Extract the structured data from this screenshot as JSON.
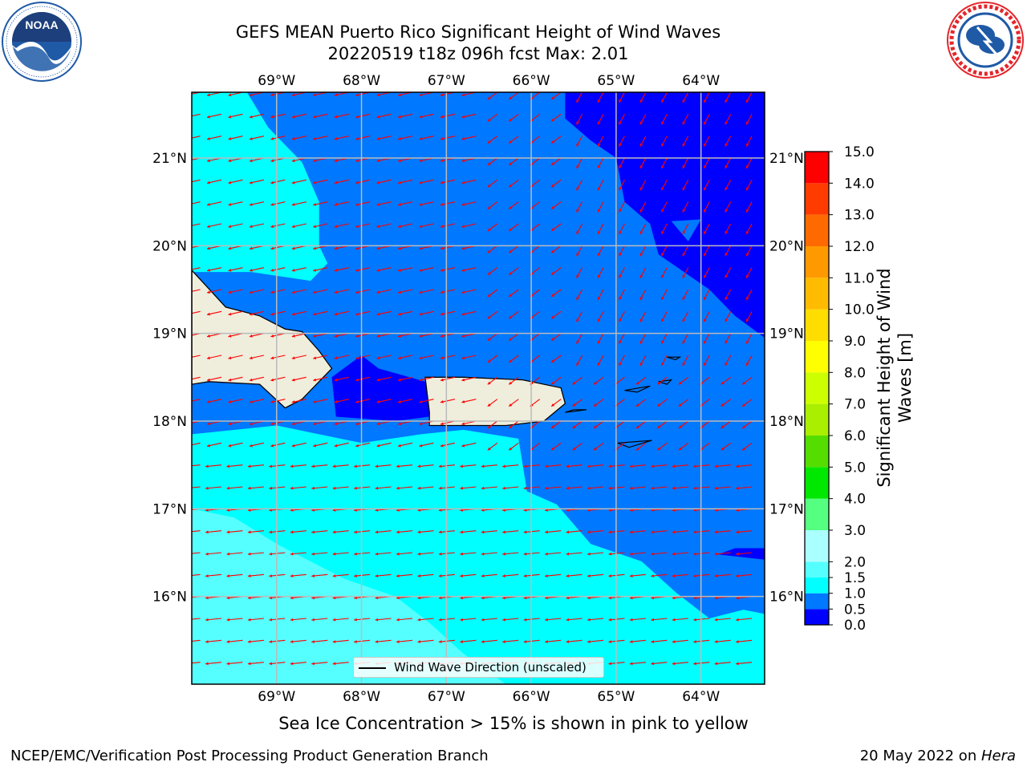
{
  "title": {
    "line1": "GEFS MEAN Puerto Rico Significant Height of Wind Waves",
    "line2": "20220519 t18z 096h fcst   Max: 2.01"
  },
  "logos": {
    "left": {
      "text": "NOAA",
      "ring_text": "NATIONAL OCEANIC AND ATMOSPHERIC ADMINISTRATION · U.S. DEPARTMENT OF COMMERCE",
      "color": "#1f5aa6"
    },
    "right": {
      "ring_text": "NATIONAL WEATHER SERVICE",
      "color": "#e4262b"
    }
  },
  "map": {
    "lon_range": [
      -70,
      -63.25
    ],
    "lat_range": [
      15,
      21.75
    ],
    "lon_ticks": [
      "69°W",
      "68°W",
      "67°W",
      "66°W",
      "65°W",
      "64°W"
    ],
    "lat_ticks": [
      "21°N",
      "20°N",
      "19°N",
      "18°N",
      "17°N",
      "16°N"
    ],
    "grid": true,
    "land_color": "#efeddc",
    "arrow_color": "#ff0000",
    "legend": "Wind Wave Direction (unscaled)",
    "legend_placement": "lower-center"
  },
  "colorbar": {
    "label": "Significant Height of Wind Waves [m]",
    "label_line1": "Significant Height of Wind",
    "label_line2": "Waves [m]",
    "ticks": [
      "0.0",
      "0.5",
      "1.0",
      "1.5",
      "2.0",
      "3.0",
      "4.0",
      "5.0",
      "6.0",
      "7.0",
      "8.0",
      "9.0",
      "10.0",
      "11.0",
      "12.0",
      "13.0",
      "14.0",
      "15.0"
    ],
    "colors": [
      "#0000ff",
      "#0078ff",
      "#00ffff",
      "#55ffff",
      "#aaffff",
      "#55ff7f",
      "#00e800",
      "#55dd00",
      "#aaee00",
      "#ccff00",
      "#ffff00",
      "#ffdd00",
      "#ffbb00",
      "#ff9900",
      "#ff6a00",
      "#ff3b00",
      "#ff0000"
    ]
  },
  "ice_note": "Sea Ice Concentration > 15% is shown in pink to yellow",
  "footer": {
    "left": "NCEP/EMC/Verification Post Processing Product Generation Branch",
    "right_prefix": "20 May 2022 on ",
    "right_host": "Hera"
  }
}
